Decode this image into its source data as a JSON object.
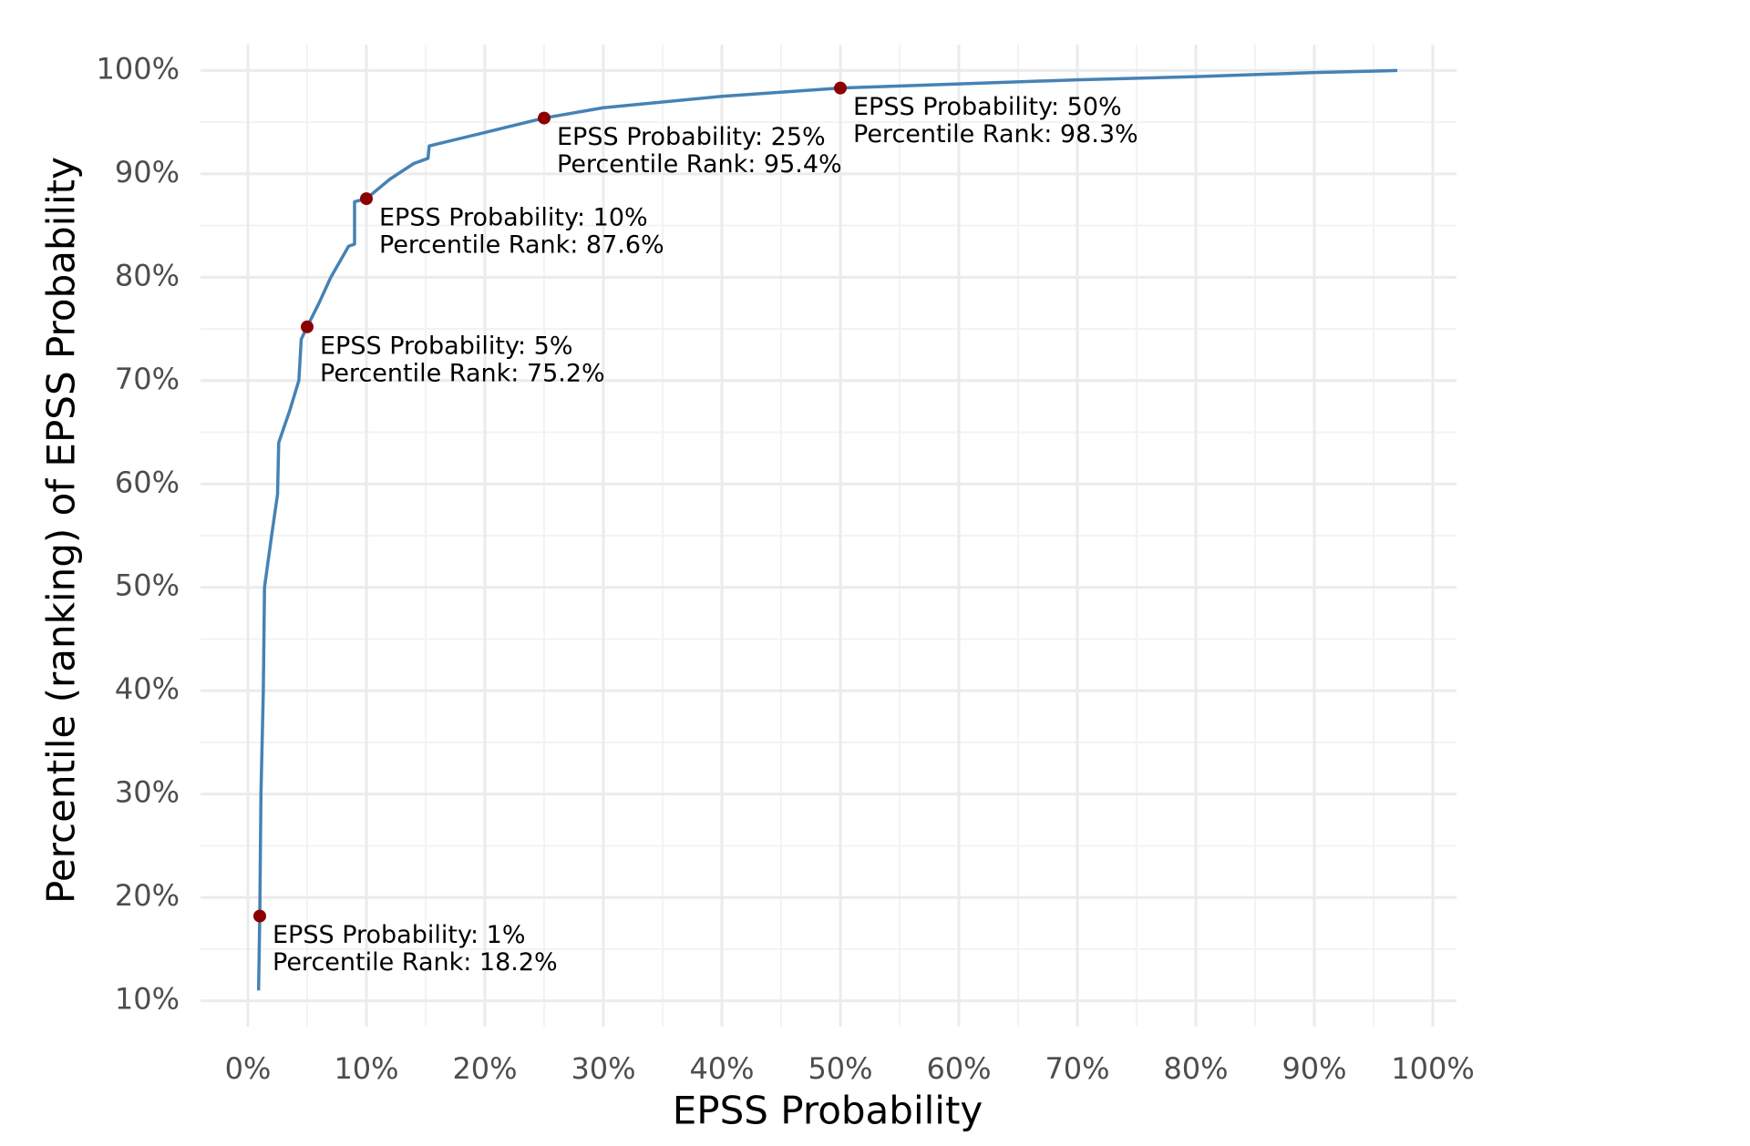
{
  "chart_data": {
    "type": "line",
    "x_label": "EPSS Probability",
    "y_label": "Percentile (ranking) of EPSS Probability",
    "xlim": [
      -4,
      102
    ],
    "ylim": [
      7.5,
      102.5
    ],
    "xticks": [
      {
        "value": 0,
        "label": "0%"
      },
      {
        "value": 10,
        "label": "10%"
      },
      {
        "value": 20,
        "label": "20%"
      },
      {
        "value": 30,
        "label": "30%"
      },
      {
        "value": 40,
        "label": "40%"
      },
      {
        "value": 50,
        "label": "50%"
      },
      {
        "value": 60,
        "label": "60%"
      },
      {
        "value": 70,
        "label": "70%"
      },
      {
        "value": 80,
        "label": "80%"
      },
      {
        "value": 90,
        "label": "90%"
      },
      {
        "value": 100,
        "label": "100%"
      }
    ],
    "yticks": [
      {
        "value": 10,
        "label": "10%"
      },
      {
        "value": 20,
        "label": "20%"
      },
      {
        "value": 30,
        "label": "30%"
      },
      {
        "value": 40,
        "label": "40%"
      },
      {
        "value": 50,
        "label": "50%"
      },
      {
        "value": 60,
        "label": "60%"
      },
      {
        "value": 70,
        "label": "70%"
      },
      {
        "value": 80,
        "label": "80%"
      },
      {
        "value": 90,
        "label": "90%"
      },
      {
        "value": 100,
        "label": "100%"
      }
    ],
    "grid": true,
    "minor_grid": true,
    "series": [
      {
        "color": "#4682b4",
        "x": [
          0.9,
          1,
          1.1,
          1.3,
          1.4,
          2,
          2.5,
          2.6,
          3.5,
          4.3,
          4.5,
          5,
          6,
          7,
          8.5,
          9,
          9,
          10,
          12,
          14,
          15.2,
          15.3,
          20,
          25,
          30,
          40,
          50,
          60,
          70,
          80,
          90,
          97
        ],
        "values": [
          11,
          18.2,
          30,
          40,
          50,
          55,
          59,
          64,
          67,
          70,
          74,
          75.2,
          77.5,
          80,
          83,
          83.2,
          87.3,
          87.6,
          89.5,
          91,
          91.5,
          92.7,
          94,
          95.4,
          96.4,
          97.5,
          98.3,
          98.7,
          99.1,
          99.4,
          99.8,
          100
        ]
      }
    ],
    "annotations": [
      {
        "x": 1,
        "y": 18.2,
        "lines": [
          "EPSS Probability: 1%",
          "Percentile Rank: 18.2%"
        ]
      },
      {
        "x": 5,
        "y": 75.2,
        "lines": [
          "EPSS Probability: 5%",
          "Percentile Rank: 75.2%"
        ]
      },
      {
        "x": 10,
        "y": 87.6,
        "lines": [
          "EPSS Probability: 10%",
          "Percentile Rank: 87.6%"
        ]
      },
      {
        "x": 25,
        "y": 95.4,
        "lines": [
          "EPSS Probability: 25%",
          "Percentile Rank: 95.4%"
        ]
      },
      {
        "x": 50,
        "y": 98.3,
        "lines": [
          "EPSS Probability: 50%",
          "Percentile Rank: 98.3%"
        ]
      }
    ],
    "marker_color": "#8b0000"
  }
}
